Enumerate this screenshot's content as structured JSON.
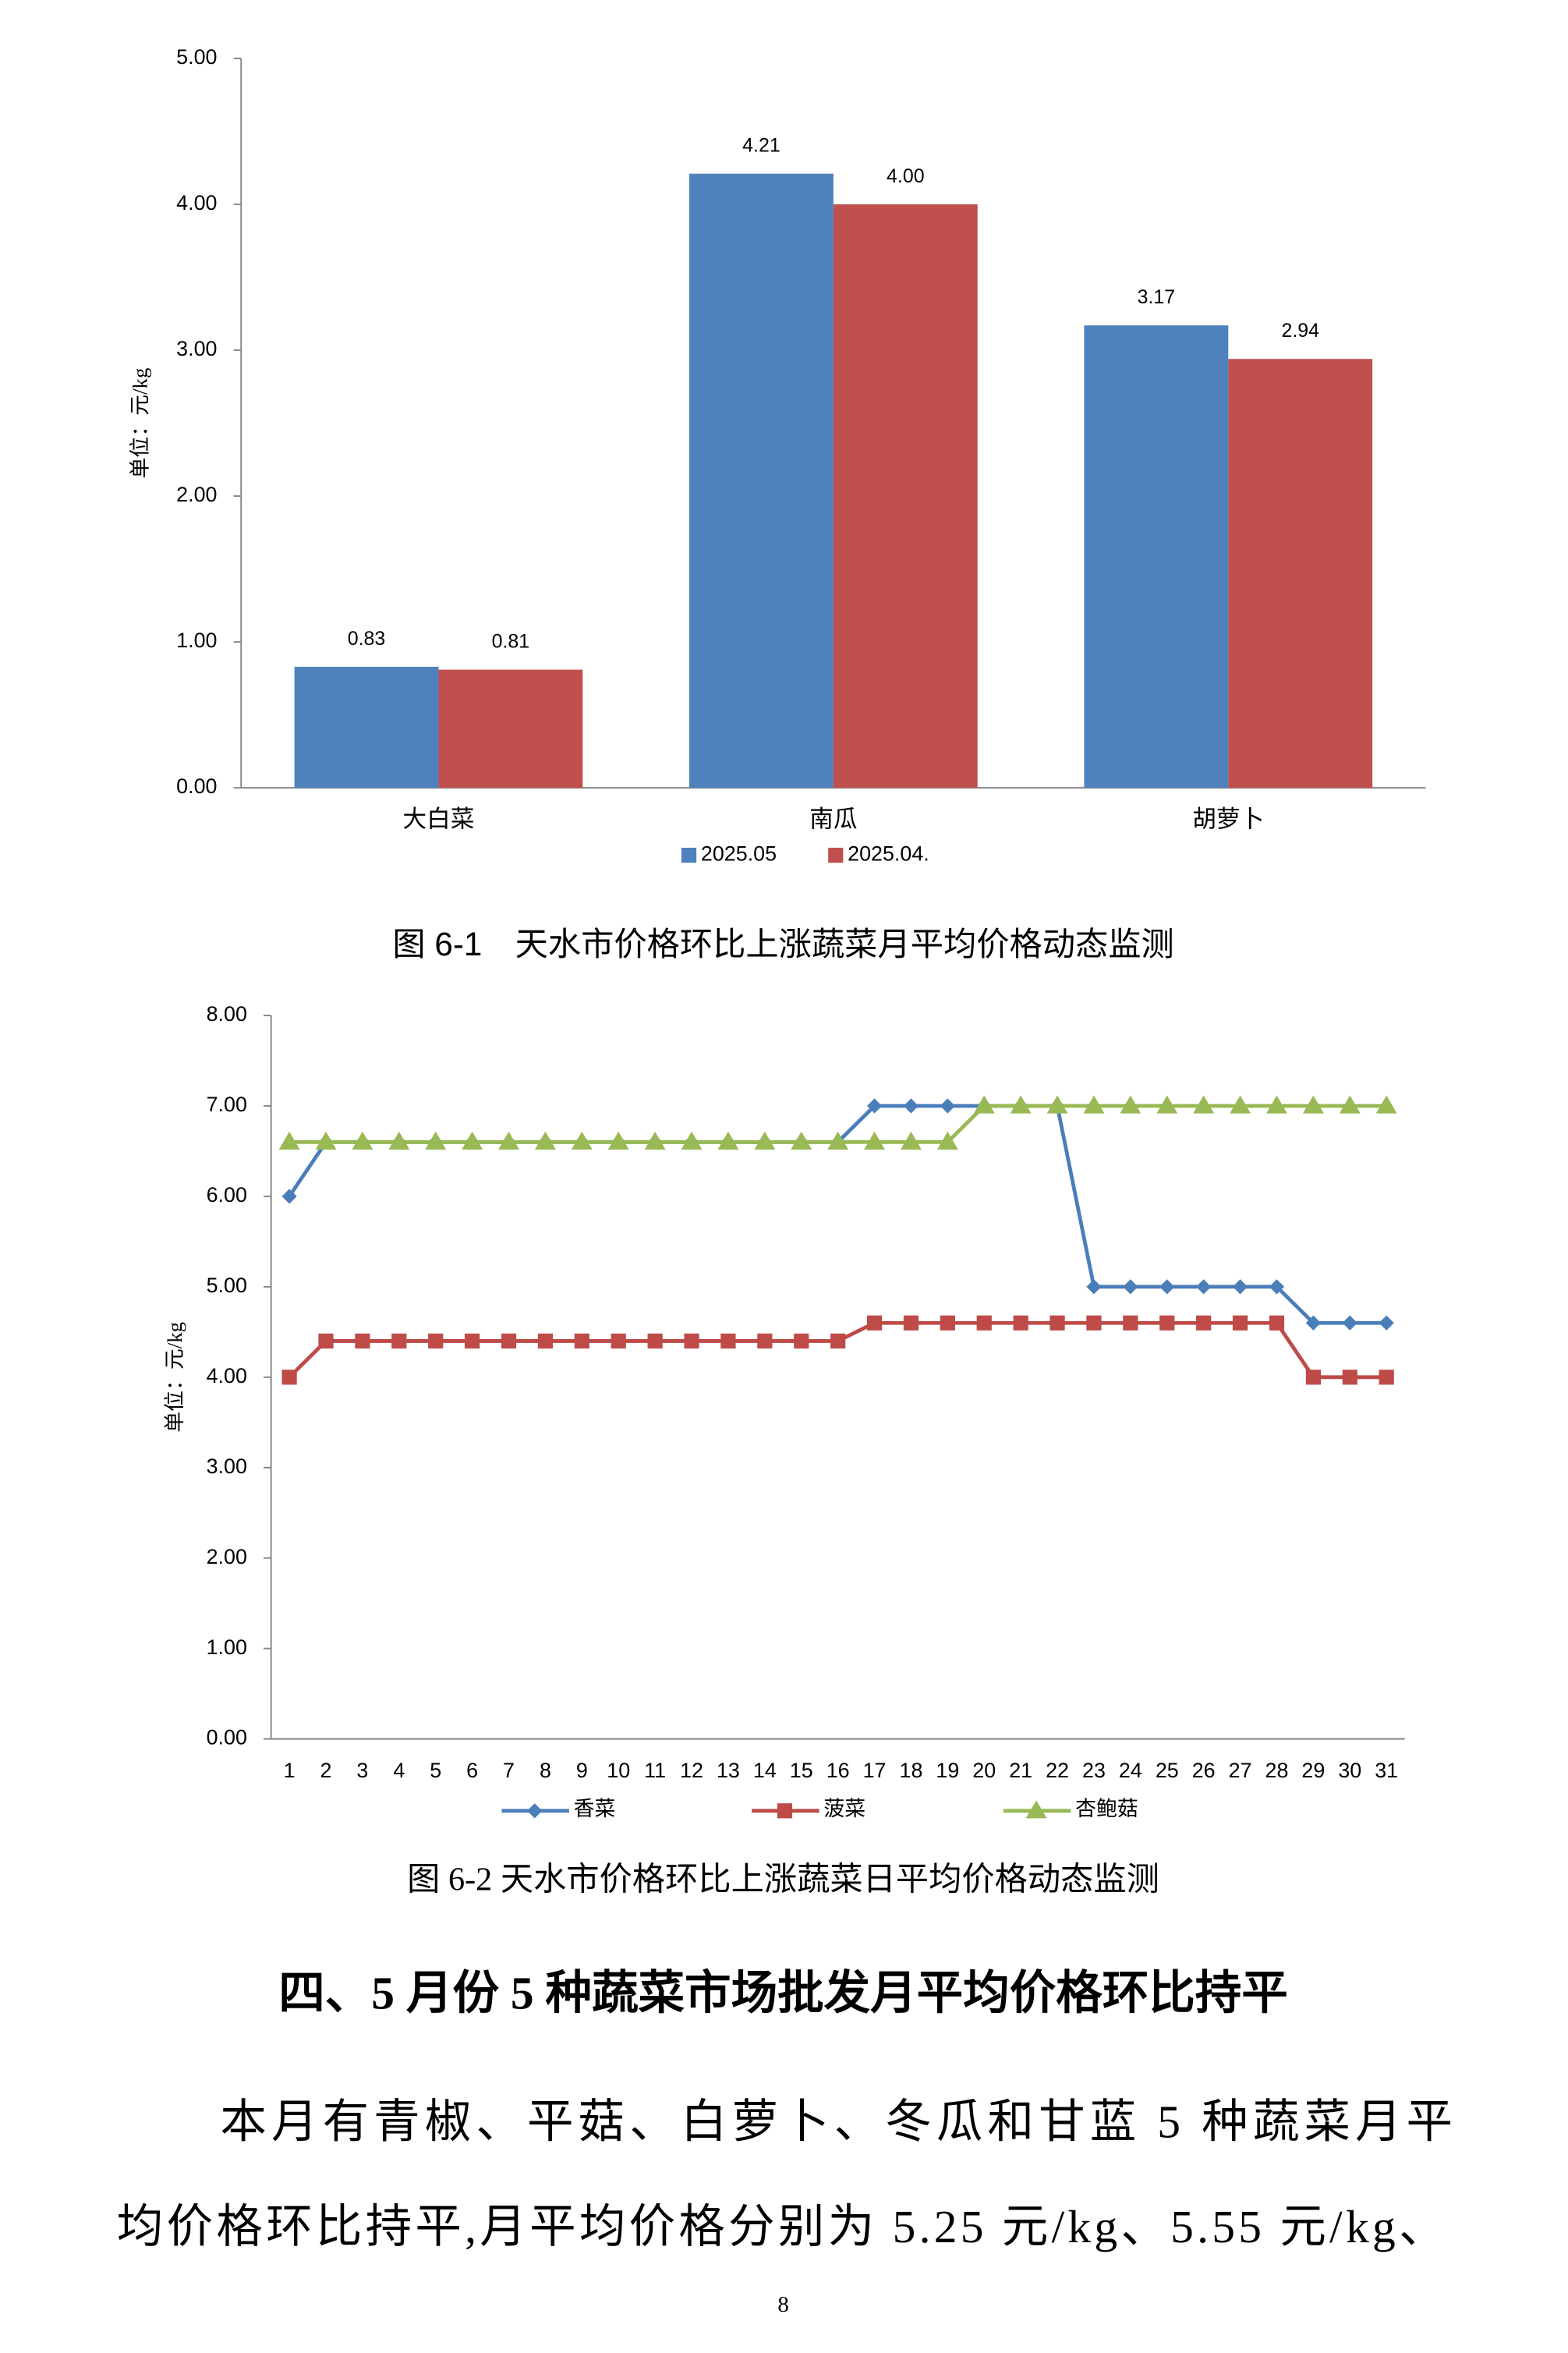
{
  "chart_data": [
    {
      "type": "bar",
      "y_label": "单位：元/kg",
      "categories": [
        "大白菜",
        "南瓜",
        "胡萝卜"
      ],
      "series": [
        {
          "name": "2025.05",
          "color": "#4f81bd",
          "values": [
            0.83,
            4.21,
            3.17
          ],
          "value_labels": [
            "0.83",
            "4.21",
            "3.17"
          ]
        },
        {
          "name": "2025.04.",
          "color": "#c0504d",
          "values": [
            0.81,
            4.0,
            2.94
          ],
          "value_labels": [
            "0.81",
            "4.00",
            "2.94"
          ]
        }
      ],
      "ylim": [
        0,
        5
      ],
      "yticks": [
        {
          "value": 0,
          "label": "0.00"
        },
        {
          "value": 1,
          "label": "1.00"
        },
        {
          "value": 2,
          "label": "2.00"
        },
        {
          "value": 3,
          "label": "3.00"
        },
        {
          "value": 4,
          "label": "4.00"
        },
        {
          "value": 5,
          "label": "5.00"
        }
      ],
      "legend": "bottom",
      "grid": false
    },
    {
      "type": "line",
      "y_label": "单位：元/kg",
      "categories": [
        1,
        2,
        3,
        4,
        5,
        6,
        7,
        8,
        9,
        10,
        11,
        12,
        13,
        14,
        15,
        16,
        17,
        18,
        19,
        20,
        21,
        22,
        23,
        24,
        25,
        26,
        27,
        28,
        29,
        30,
        31
      ],
      "series": [
        {
          "name": "香菜",
          "color": "#4a7ebb",
          "marker": "diamond",
          "values": [
            6.0,
            6.6,
            6.6,
            6.6,
            6.6,
            6.6,
            6.6,
            6.6,
            6.6,
            6.6,
            6.6,
            6.6,
            6.6,
            6.6,
            6.6,
            6.6,
            7.0,
            7.0,
            7.0,
            7.0,
            7.0,
            7.0,
            5.0,
            5.0,
            5.0,
            5.0,
            5.0,
            5.0,
            4.6,
            4.6,
            4.6
          ]
        },
        {
          "name": "菠菜",
          "color": "#be4b48",
          "marker": "square",
          "values": [
            4.0,
            4.4,
            4.4,
            4.4,
            4.4,
            4.4,
            4.4,
            4.4,
            4.4,
            4.4,
            4.4,
            4.4,
            4.4,
            4.4,
            4.4,
            4.4,
            4.6,
            4.6,
            4.6,
            4.6,
            4.6,
            4.6,
            4.6,
            4.6,
            4.6,
            4.6,
            4.6,
            4.6,
            4.0,
            4.0,
            4.0
          ]
        },
        {
          "name": "杏鲍菇",
          "color": "#98b954",
          "marker": "triangle",
          "values": [
            6.6,
            6.6,
            6.6,
            6.6,
            6.6,
            6.6,
            6.6,
            6.6,
            6.6,
            6.6,
            6.6,
            6.6,
            6.6,
            6.6,
            6.6,
            6.6,
            6.6,
            6.6,
            6.6,
            7.0,
            7.0,
            7.0,
            7.0,
            7.0,
            7.0,
            7.0,
            7.0,
            7.0,
            7.0,
            7.0,
            7.0
          ]
        }
      ],
      "ylim": [
        0,
        8
      ],
      "yticks": [
        {
          "value": 0,
          "label": "0.00"
        },
        {
          "value": 1,
          "label": "1.00"
        },
        {
          "value": 2,
          "label": "2.00"
        },
        {
          "value": 3,
          "label": "3.00"
        },
        {
          "value": 4,
          "label": "4.00"
        },
        {
          "value": 5,
          "label": "5.00"
        },
        {
          "value": 6,
          "label": "6.00"
        },
        {
          "value": 7,
          "label": "7.00"
        },
        {
          "value": 8,
          "label": "8.00"
        }
      ],
      "legend": "bottom",
      "grid": false
    }
  ],
  "captions": [
    "图 6-1　天水市价格环比上涨蔬菜月平均价格动态监测",
    "图 6-2 天水市价格环比上涨蔬菜日平均价格动态监测"
  ],
  "heading": "四、5 月份 5 种蔬菜市场批发月平均价格环比持平",
  "paragraph": [
    "本月有青椒、平菇、白萝卜、冬瓜和甘蓝 5 种蔬菜月平",
    "均价格环比持平,月平均价格分别为 5.25 元/kg、5.55 元/kg、"
  ],
  "page_number": "8"
}
